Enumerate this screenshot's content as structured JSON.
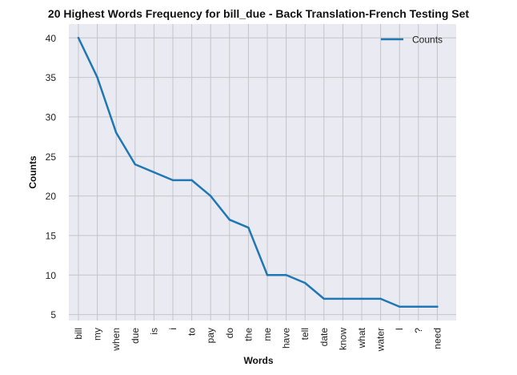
{
  "chart_data": {
    "type": "line",
    "title": "20 Highest Words Frequency for bill_due - Back Translation-French Testing Set",
    "xlabel": "Words",
    "ylabel": "Counts",
    "categories": [
      "bill",
      "my",
      "when",
      "due",
      "is",
      "i",
      "to",
      "pay",
      "do",
      "the",
      "me",
      "have",
      "tell",
      "date",
      "know",
      "what",
      "water",
      "I",
      "?",
      "need"
    ],
    "series": [
      {
        "name": "Counts",
        "values": [
          40,
          35,
          28,
          24,
          23,
          22,
          22,
          20,
          17,
          16,
          10,
          10,
          9,
          7,
          7,
          7,
          7,
          6,
          6,
          6
        ],
        "color": "#1f77b4"
      }
    ],
    "ylim": [
      4.25,
      41.75
    ],
    "yticks": [
      5,
      10,
      15,
      20,
      25,
      30,
      35,
      40
    ],
    "grid": true,
    "legend": "top-right",
    "background_color": "#eaeaf2",
    "grid_color": "#c4c4c8"
  }
}
